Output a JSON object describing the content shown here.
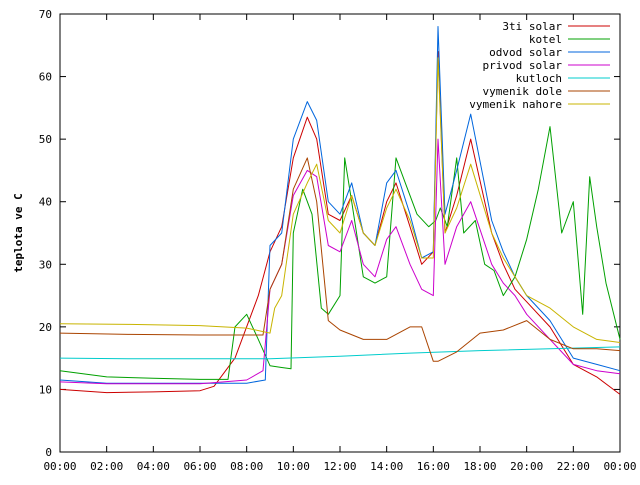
{
  "chart_data": {
    "type": "line",
    "title": "",
    "xlabel": "",
    "ylabel": "teplota ve C",
    "xlim": [
      0,
      24
    ],
    "ylim": [
      0,
      70
    ],
    "grid": false,
    "legend_position": "top-right",
    "x_tick_labels": [
      "00:00",
      "02:00",
      "04:00",
      "06:00",
      "08:00",
      "10:00",
      "12:00",
      "14:00",
      "16:00",
      "18:00",
      "20:00",
      "22:00",
      "00:00"
    ],
    "y_ticks": [
      0,
      10,
      20,
      30,
      40,
      50,
      60,
      70
    ],
    "y_tick_labels": [
      "0",
      "10",
      "20",
      "30",
      "40",
      "50",
      "60",
      "70"
    ],
    "series": [
      {
        "name": "3ti solar",
        "color": "#cc0000",
        "points": [
          [
            0,
            10
          ],
          [
            2,
            9.5
          ],
          [
            4,
            9.6
          ],
          [
            6,
            9.8
          ],
          [
            6.6,
            10.5
          ],
          [
            7.5,
            15
          ],
          [
            8.5,
            25
          ],
          [
            9,
            32
          ],
          [
            9.5,
            36
          ],
          [
            10,
            47
          ],
          [
            10.6,
            53.5
          ],
          [
            11,
            50
          ],
          [
            11.5,
            38
          ],
          [
            12,
            37
          ],
          [
            12.5,
            41
          ],
          [
            13,
            35
          ],
          [
            13.5,
            33
          ],
          [
            14,
            40
          ],
          [
            14.4,
            43
          ],
          [
            15,
            36
          ],
          [
            15.5,
            30
          ],
          [
            16,
            32
          ],
          [
            16.2,
            64
          ],
          [
            16.5,
            35
          ],
          [
            17,
            41
          ],
          [
            17.6,
            50
          ],
          [
            18.5,
            35
          ],
          [
            19,
            30
          ],
          [
            19.5,
            26
          ],
          [
            20,
            24
          ],
          [
            21,
            20
          ],
          [
            22,
            14
          ],
          [
            23,
            12
          ],
          [
            24,
            9.2
          ]
        ]
      },
      {
        "name": "kotel",
        "color": "#00a000",
        "points": [
          [
            0,
            13
          ],
          [
            2,
            12
          ],
          [
            4,
            11.8
          ],
          [
            6,
            11.6
          ],
          [
            7.2,
            11.6
          ],
          [
            7.5,
            20
          ],
          [
            8,
            22
          ],
          [
            8.5,
            18
          ],
          [
            9,
            13.8
          ],
          [
            9.5,
            13.5
          ],
          [
            9.9,
            13.3
          ],
          [
            10,
            35
          ],
          [
            10.4,
            42
          ],
          [
            10.8,
            38
          ],
          [
            11.2,
            23
          ],
          [
            11.5,
            22
          ],
          [
            12,
            25
          ],
          [
            12.2,
            47
          ],
          [
            12.5,
            40
          ],
          [
            13,
            28
          ],
          [
            13.5,
            27
          ],
          [
            14,
            28
          ],
          [
            14.4,
            47
          ],
          [
            14.8,
            43
          ],
          [
            15.3,
            38
          ],
          [
            15.8,
            36
          ],
          [
            16.1,
            37
          ],
          [
            16.3,
            39
          ],
          [
            16.6,
            36
          ],
          [
            17,
            47
          ],
          [
            17.3,
            35
          ],
          [
            17.8,
            37
          ],
          [
            18.2,
            30
          ],
          [
            18.6,
            29
          ],
          [
            19,
            25
          ],
          [
            19.5,
            28
          ],
          [
            20,
            34
          ],
          [
            20.5,
            42
          ],
          [
            21,
            52
          ],
          [
            21.5,
            35
          ],
          [
            22,
            40
          ],
          [
            22.4,
            22
          ],
          [
            22.7,
            44
          ],
          [
            23,
            36
          ],
          [
            23.4,
            27
          ],
          [
            24,
            18
          ]
        ]
      },
      {
        "name": "odvod solar",
        "color": "#0066dd",
        "points": [
          [
            0,
            11.5
          ],
          [
            2,
            11
          ],
          [
            4,
            11
          ],
          [
            6,
            11
          ],
          [
            8,
            11
          ],
          [
            8.8,
            11.5
          ],
          [
            9,
            33
          ],
          [
            9.5,
            35
          ],
          [
            10,
            50
          ],
          [
            10.6,
            56
          ],
          [
            11,
            53
          ],
          [
            11.5,
            40
          ],
          [
            12,
            38
          ],
          [
            12.5,
            43
          ],
          [
            13,
            35
          ],
          [
            13.5,
            33
          ],
          [
            14,
            43
          ],
          [
            14.4,
            45
          ],
          [
            15,
            38
          ],
          [
            15.5,
            31
          ],
          [
            16,
            32
          ],
          [
            16.2,
            68
          ],
          [
            16.5,
            38
          ],
          [
            17,
            45
          ],
          [
            17.6,
            54
          ],
          [
            18.5,
            37
          ],
          [
            19,
            32
          ],
          [
            19.5,
            28
          ],
          [
            20,
            25
          ],
          [
            21,
            21
          ],
          [
            22,
            15
          ],
          [
            23,
            14
          ],
          [
            24,
            13
          ]
        ]
      },
      {
        "name": "privod solar",
        "color": "#cc00cc",
        "points": [
          [
            0,
            11.2
          ],
          [
            2,
            10.9
          ],
          [
            4,
            10.9
          ],
          [
            6,
            10.9
          ],
          [
            8,
            11.5
          ],
          [
            8.7,
            13
          ],
          [
            9,
            26
          ],
          [
            9.5,
            30
          ],
          [
            10,
            41
          ],
          [
            10.6,
            45
          ],
          [
            11,
            44
          ],
          [
            11.5,
            33
          ],
          [
            12,
            32
          ],
          [
            12.5,
            37
          ],
          [
            13,
            30
          ],
          [
            13.5,
            28
          ],
          [
            14,
            34
          ],
          [
            14.4,
            36
          ],
          [
            15,
            30
          ],
          [
            15.5,
            26
          ],
          [
            16,
            25
          ],
          [
            16.2,
            50
          ],
          [
            16.5,
            30
          ],
          [
            17,
            36
          ],
          [
            17.6,
            40
          ],
          [
            18.5,
            30
          ],
          [
            19,
            27
          ],
          [
            19.5,
            25
          ],
          [
            20,
            22
          ],
          [
            21,
            18
          ],
          [
            22,
            14
          ],
          [
            23,
            13
          ],
          [
            24,
            12.5
          ]
        ]
      },
      {
        "name": "kutloch",
        "color": "#00cccc",
        "points": [
          [
            0,
            15
          ],
          [
            3,
            14.9
          ],
          [
            6,
            14.9
          ],
          [
            9,
            14.9
          ],
          [
            12,
            15.3
          ],
          [
            15,
            15.8
          ],
          [
            18,
            16.2
          ],
          [
            21,
            16.5
          ],
          [
            24,
            16.8
          ]
        ]
      },
      {
        "name": "vymenik dole",
        "color": "#aa4400",
        "points": [
          [
            0,
            19
          ],
          [
            3,
            18.8
          ],
          [
            6,
            18.7
          ],
          [
            8,
            18.7
          ],
          [
            8.7,
            18.7
          ],
          [
            9,
            26
          ],
          [
            9.5,
            30
          ],
          [
            10,
            42
          ],
          [
            10.6,
            47
          ],
          [
            11,
            40
          ],
          [
            11.5,
            21
          ],
          [
            12,
            19.5
          ],
          [
            13,
            18
          ],
          [
            14,
            18
          ],
          [
            15,
            20
          ],
          [
            15.5,
            20
          ],
          [
            16,
            14.5
          ],
          [
            16.2,
            14.5
          ],
          [
            17,
            16
          ],
          [
            18,
            19
          ],
          [
            19,
            19.5
          ],
          [
            20,
            21
          ],
          [
            21,
            18
          ],
          [
            22,
            16.5
          ],
          [
            23,
            16.5
          ],
          [
            24,
            16.2
          ]
        ]
      },
      {
        "name": "vymenik nahore",
        "color": "#c8b400",
        "points": [
          [
            0,
            20.5
          ],
          [
            3,
            20.4
          ],
          [
            6,
            20.2
          ],
          [
            8,
            19.8
          ],
          [
            9,
            19
          ],
          [
            9.2,
            23
          ],
          [
            9.5,
            25
          ],
          [
            10,
            38
          ],
          [
            10.6,
            43
          ],
          [
            11,
            46
          ],
          [
            11.5,
            37
          ],
          [
            12,
            35
          ],
          [
            12.5,
            41
          ],
          [
            13,
            35
          ],
          [
            13.5,
            33
          ],
          [
            14,
            39
          ],
          [
            14.4,
            42
          ],
          [
            15,
            37
          ],
          [
            15.5,
            31
          ],
          [
            16,
            31
          ],
          [
            16.2,
            63
          ],
          [
            16.5,
            35
          ],
          [
            17,
            39
          ],
          [
            17.6,
            46
          ],
          [
            18.5,
            35
          ],
          [
            19,
            31
          ],
          [
            19.5,
            28
          ],
          [
            20,
            25
          ],
          [
            21,
            23
          ],
          [
            22,
            20
          ],
          [
            23,
            18
          ],
          [
            24,
            17.5
          ]
        ]
      }
    ]
  }
}
